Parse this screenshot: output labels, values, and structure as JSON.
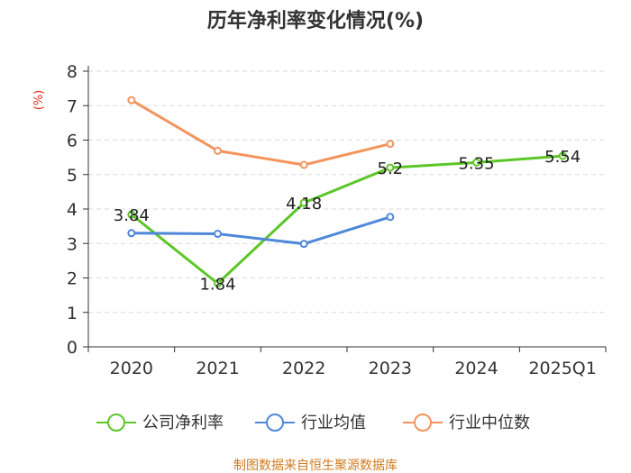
{
  "chart_data": {
    "type": "line",
    "title": "历年净利率变化情况(%)",
    "ylabel": "(%)",
    "categories": [
      "2020",
      "2021",
      "2022",
      "2023",
      "2024",
      "2025Q1"
    ],
    "ylim": [
      0,
      8
    ],
    "yticks": [
      "0",
      "1",
      "2",
      "3",
      "4",
      "5",
      "6",
      "7",
      "8"
    ],
    "grid": true,
    "legend_position": "bottom",
    "series": [
      {
        "name": "公司净利率",
        "color": "#5cc627",
        "values": [
          3.84,
          1.84,
          4.18,
          5.2,
          5.35,
          5.54
        ],
        "labels": [
          "3.84",
          "1.84",
          "4.18",
          "5.2",
          "5.35",
          "5.54"
        ]
      },
      {
        "name": "行业均值",
        "color": "#4f87d9",
        "values": [
          3.3,
          3.28,
          2.99,
          3.77,
          null,
          null
        ]
      },
      {
        "name": "行业中位数",
        "color": "#f5935d",
        "values": [
          7.16,
          5.69,
          5.28,
          5.89,
          null,
          null
        ]
      }
    ],
    "source": "制图数据来自恒生聚源数据库"
  }
}
